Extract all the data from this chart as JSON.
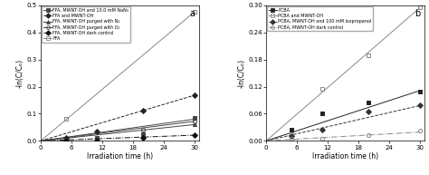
{
  "panel_a": {
    "title": "a",
    "ylabel": "-ln(C/Cₒ)",
    "xlabel": "Irradiation time (h)",
    "xlim": [
      0,
      31
    ],
    "ylim": [
      0,
      0.5
    ],
    "yticks": [
      0.0,
      0.1,
      0.2,
      0.3,
      0.4,
      0.5
    ],
    "xticks": [
      0,
      6,
      12,
      18,
      24,
      30
    ],
    "series": [
      {
        "label": "FFA, MWNT-OH and 10.0 mM NaN₃",
        "marker": "s",
        "fillstyle": "full",
        "color": "#444444",
        "linestyle": "-",
        "x": [
          5,
          11,
          20,
          30
        ],
        "y": [
          0.005,
          0.01,
          0.025,
          0.085
        ],
        "slope": 0.00267
      },
      {
        "label": "FFA and MWNT-OH",
        "marker": "D",
        "fillstyle": "full",
        "color": "#222222",
        "linestyle": "--",
        "x": [
          5,
          11,
          20,
          30
        ],
        "y": [
          0.012,
          0.035,
          0.11,
          0.168
        ],
        "slope": 0.0056
      },
      {
        "label": "FFA, MWNT-OH purged with N₂",
        "marker": "^",
        "fillstyle": "full",
        "color": "#444444",
        "linestyle": "-",
        "x": [
          5,
          11,
          20,
          30
        ],
        "y": [
          0.005,
          0.01,
          0.025,
          0.06
        ],
        "slope": 0.002
      },
      {
        "label": "FFA, MWNT-OH purged with O₂",
        "marker": "o",
        "fillstyle": "none",
        "color": "#444444",
        "linestyle": "-",
        "x": [
          5,
          11,
          20,
          30
        ],
        "y": [
          0.005,
          0.01,
          0.04,
          0.07
        ],
        "slope": 0.0024
      },
      {
        "label": "FFA, MWNT-OH dark control",
        "marker": "D",
        "fillstyle": "full",
        "color": "#111111",
        "linestyle": "-.",
        "x": [
          5,
          11,
          20,
          30
        ],
        "y": [
          0.0,
          0.002,
          0.01,
          0.022
        ],
        "slope": 0.0007
      },
      {
        "label": "FFA",
        "marker": "s",
        "fillstyle": "none",
        "color": "#888888",
        "linestyle": "-",
        "x": [
          5,
          30
        ],
        "y": [
          0.08,
          0.475
        ],
        "slope": 0.01583
      }
    ]
  },
  "panel_b": {
    "title": "b",
    "ylabel": "-ln(C/Cₒ)",
    "xlabel": "Irradiation time (h)",
    "xlim": [
      0,
      31
    ],
    "ylim": [
      0,
      0.3
    ],
    "yticks": [
      0.0,
      0.06,
      0.12,
      0.18,
      0.24,
      0.3
    ],
    "xticks": [
      0,
      6,
      12,
      18,
      24,
      30
    ],
    "series": [
      {
        "label": "PCBA",
        "marker": "s",
        "fillstyle": "full",
        "color": "#222222",
        "linestyle": "-",
        "x": [
          5,
          11,
          20,
          30
        ],
        "y": [
          0.025,
          0.06,
          0.085,
          0.11
        ],
        "slope": 0.0037
      },
      {
        "label": "PCBA and MWNT-OH",
        "marker": "s",
        "fillstyle": "none",
        "color": "#888888",
        "linestyle": "-",
        "x": [
          5,
          11,
          20,
          30
        ],
        "y": [
          0.015,
          0.115,
          0.19,
          0.295
        ],
        "slope": 0.0098
      },
      {
        "label": "PCBA, MWNT-OH and 100 mM Isopropanol",
        "marker": "D",
        "fillstyle": "full",
        "color": "#333333",
        "linestyle": "--",
        "x": [
          5,
          11,
          20,
          30
        ],
        "y": [
          0.01,
          0.025,
          0.065,
          0.078
        ],
        "slope": 0.0026
      },
      {
        "label": "PCBA, MWNT-OH dark control",
        "marker": "o",
        "fillstyle": "none",
        "color": "#888888",
        "linestyle": "-.",
        "x": [
          5,
          11,
          20,
          30
        ],
        "y": [
          0.005,
          0.005,
          0.012,
          0.022
        ],
        "slope": 0.00065
      }
    ]
  }
}
